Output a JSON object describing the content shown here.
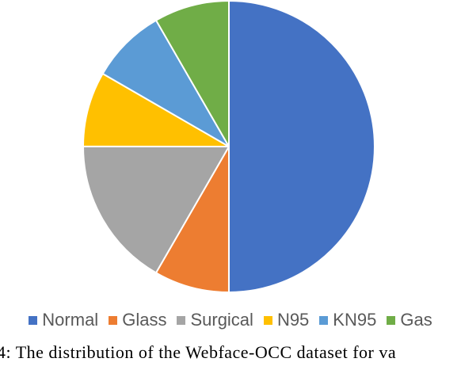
{
  "chart_data": {
    "type": "pie",
    "title": "",
    "start_angle_deg": 90,
    "direction": "clockwise",
    "categories": [
      "Normal",
      "Glass",
      "Surgical",
      "N95",
      "KN95",
      "Gas"
    ],
    "values": [
      50.0,
      8.33,
      16.67,
      8.33,
      8.33,
      8.33
    ],
    "colors": [
      "#4472C4",
      "#ED7D31",
      "#A5A5A5",
      "#FFC000",
      "#5B9BD5",
      "#70AD47"
    ],
    "legend_position": "bottom"
  },
  "caption": {
    "text": "4: The distribution of the Webface-OCC dataset for va"
  }
}
